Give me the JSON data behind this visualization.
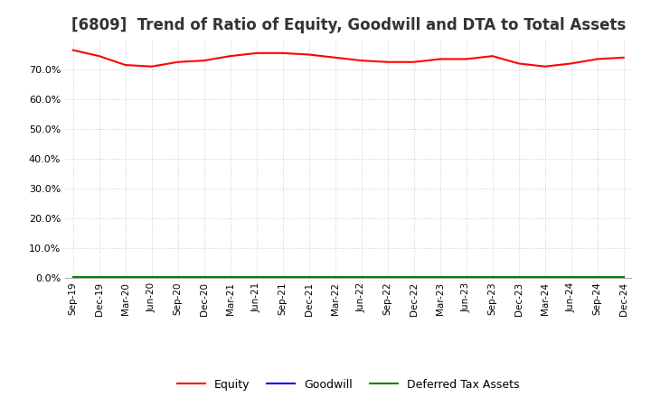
{
  "title": "[6809]  Trend of Ratio of Equity, Goodwill and DTA to Total Assets",
  "x_labels": [
    "Sep-19",
    "Dec-19",
    "Mar-20",
    "Jun-20",
    "Sep-20",
    "Dec-20",
    "Mar-21",
    "Jun-21",
    "Sep-21",
    "Dec-21",
    "Mar-22",
    "Jun-22",
    "Sep-22",
    "Dec-22",
    "Mar-23",
    "Jun-23",
    "Sep-23",
    "Dec-23",
    "Mar-24",
    "Jun-24",
    "Sep-24",
    "Dec-24"
  ],
  "equity": [
    76.5,
    74.5,
    71.5,
    71.0,
    72.5,
    73.0,
    74.5,
    75.5,
    75.5,
    75.0,
    74.0,
    73.0,
    72.5,
    72.5,
    73.5,
    73.5,
    74.5,
    72.0,
    71.0,
    72.0,
    73.5,
    74.0
  ],
  "goodwill": [
    0.0,
    0.0,
    0.0,
    0.0,
    0.0,
    0.0,
    0.0,
    0.0,
    0.0,
    0.0,
    0.0,
    0.0,
    0.0,
    0.0,
    0.0,
    0.0,
    0.0,
    0.0,
    0.0,
    0.0,
    0.0,
    0.0
  ],
  "dta": [
    0.3,
    0.3,
    0.3,
    0.3,
    0.3,
    0.3,
    0.3,
    0.3,
    0.3,
    0.3,
    0.3,
    0.3,
    0.3,
    0.3,
    0.3,
    0.3,
    0.3,
    0.3,
    0.3,
    0.3,
    0.3,
    0.3
  ],
  "equity_color": "#ff0000",
  "goodwill_color": "#0000ff",
  "dta_color": "#008000",
  "ylim": [
    0,
    80
  ],
  "yticks": [
    0,
    10,
    20,
    30,
    40,
    50,
    60,
    70
  ],
  "background_color": "#ffffff",
  "plot_bg_color": "#ffffff",
  "grid_color": "#cccccc",
  "title_fontsize": 12,
  "legend_labels": [
    "Equity",
    "Goodwill",
    "Deferred Tax Assets"
  ]
}
